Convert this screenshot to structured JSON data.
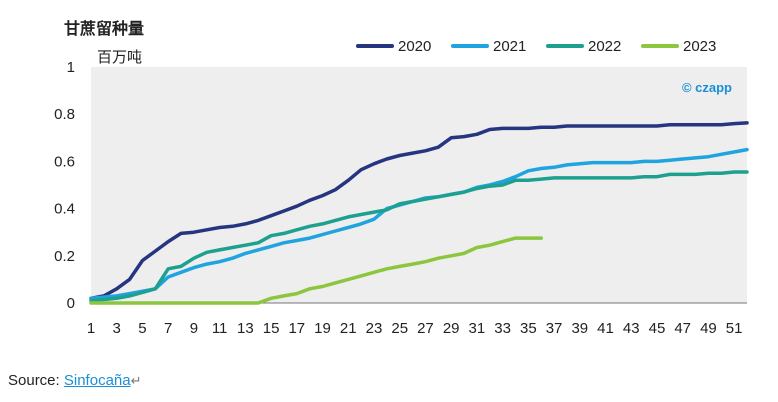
{
  "chart_data": {
    "type": "line",
    "title": "甘蔗留种量",
    "ylabel": "百万吨",
    "xlabel": "",
    "ylim": [
      0,
      1
    ],
    "yticks": [
      "0",
      "0.2",
      "0.4",
      "0.6",
      "0.8",
      "1"
    ],
    "xlim": [
      1,
      52
    ],
    "xticks": [
      "1",
      "3",
      "5",
      "7",
      "9",
      "11",
      "13",
      "15",
      "17",
      "19",
      "21",
      "23",
      "25",
      "27",
      "29",
      "31",
      "33",
      "35",
      "37",
      "39",
      "41",
      "43",
      "45",
      "47",
      "49",
      "51"
    ],
    "grid": false,
    "legend_position": "top-right",
    "brand": "© czapp",
    "series": [
      {
        "name": "2020",
        "color": "#263580",
        "x": [
          1,
          2,
          3,
          4,
          5,
          6,
          7,
          8,
          9,
          10,
          11,
          12,
          13,
          14,
          15,
          16,
          17,
          18,
          19,
          20,
          21,
          22,
          23,
          24,
          25,
          26,
          27,
          28,
          29,
          30,
          31,
          32,
          33,
          34,
          35,
          36,
          37,
          38,
          39,
          40,
          41,
          42,
          43,
          44,
          45,
          46,
          47,
          48,
          49,
          50,
          51,
          52
        ],
        "values": [
          0.02,
          0.03,
          0.06,
          0.1,
          0.18,
          0.22,
          0.26,
          0.295,
          0.3,
          0.31,
          0.32,
          0.325,
          0.335,
          0.35,
          0.37,
          0.39,
          0.41,
          0.435,
          0.455,
          0.48,
          0.52,
          0.565,
          0.59,
          0.61,
          0.625,
          0.635,
          0.645,
          0.66,
          0.7,
          0.705,
          0.715,
          0.735,
          0.74,
          0.74,
          0.74,
          0.745,
          0.745,
          0.75,
          0.75,
          0.75,
          0.75,
          0.75,
          0.75,
          0.75,
          0.75,
          0.755,
          0.755,
          0.755,
          0.755,
          0.755,
          0.76,
          0.763
        ]
      },
      {
        "name": "2021",
        "color": "#20a4e0",
        "x": [
          1,
          2,
          3,
          4,
          5,
          6,
          7,
          8,
          9,
          10,
          11,
          12,
          13,
          14,
          15,
          16,
          17,
          18,
          19,
          20,
          21,
          22,
          23,
          24,
          25,
          26,
          27,
          28,
          29,
          30,
          31,
          32,
          33,
          34,
          35,
          36,
          37,
          38,
          39,
          40,
          41,
          42,
          43,
          44,
          45,
          46,
          47,
          48,
          49,
          50,
          51,
          52
        ],
        "values": [
          0.02,
          0.025,
          0.03,
          0.04,
          0.05,
          0.06,
          0.11,
          0.13,
          0.15,
          0.165,
          0.175,
          0.19,
          0.21,
          0.225,
          0.24,
          0.255,
          0.265,
          0.275,
          0.29,
          0.305,
          0.32,
          0.335,
          0.355,
          0.4,
          0.415,
          0.43,
          0.445,
          0.45,
          0.46,
          0.47,
          0.49,
          0.5,
          0.515,
          0.535,
          0.56,
          0.57,
          0.575,
          0.585,
          0.59,
          0.595,
          0.595,
          0.595,
          0.595,
          0.6,
          0.6,
          0.605,
          0.61,
          0.615,
          0.62,
          0.63,
          0.64,
          0.65
        ]
      },
      {
        "name": "2022",
        "color": "#1ea090",
        "x": [
          1,
          2,
          3,
          4,
          5,
          6,
          7,
          8,
          9,
          10,
          11,
          12,
          13,
          14,
          15,
          16,
          17,
          18,
          19,
          20,
          21,
          22,
          23,
          24,
          25,
          26,
          27,
          28,
          29,
          30,
          31,
          32,
          33,
          34,
          35,
          36,
          37,
          38,
          39,
          40,
          41,
          42,
          43,
          44,
          45,
          46,
          47,
          48,
          49,
          50,
          51,
          52
        ],
        "values": [
          0.01,
          0.015,
          0.02,
          0.03,
          0.045,
          0.06,
          0.145,
          0.155,
          0.19,
          0.215,
          0.225,
          0.235,
          0.245,
          0.255,
          0.285,
          0.295,
          0.31,
          0.325,
          0.335,
          0.35,
          0.365,
          0.375,
          0.385,
          0.395,
          0.42,
          0.43,
          0.44,
          0.45,
          0.46,
          0.47,
          0.485,
          0.495,
          0.5,
          0.52,
          0.52,
          0.525,
          0.53,
          0.53,
          0.53,
          0.53,
          0.53,
          0.53,
          0.53,
          0.535,
          0.535,
          0.545,
          0.545,
          0.545,
          0.55,
          0.55,
          0.555,
          0.555
        ]
      },
      {
        "name": "2023",
        "color": "#8cc63f",
        "x": [
          1,
          2,
          3,
          4,
          5,
          6,
          7,
          8,
          9,
          10,
          11,
          12,
          13,
          14,
          15,
          16,
          17,
          18,
          19,
          20,
          21,
          22,
          23,
          24,
          25,
          26,
          27,
          28,
          29,
          30,
          31,
          32,
          33,
          34,
          35,
          36
        ],
        "values": [
          0,
          0,
          0,
          0,
          0,
          0,
          0,
          0,
          0,
          0,
          0,
          0,
          0,
          0,
          0.02,
          0.03,
          0.04,
          0.06,
          0.07,
          0.085,
          0.1,
          0.115,
          0.13,
          0.145,
          0.155,
          0.165,
          0.175,
          0.19,
          0.2,
          0.21,
          0.235,
          0.245,
          0.26,
          0.275,
          0.275,
          0.275
        ]
      }
    ]
  },
  "footer": {
    "source_prefix": "Source: ",
    "source_link": "Sinfocaña",
    "return_mark": "↵"
  }
}
